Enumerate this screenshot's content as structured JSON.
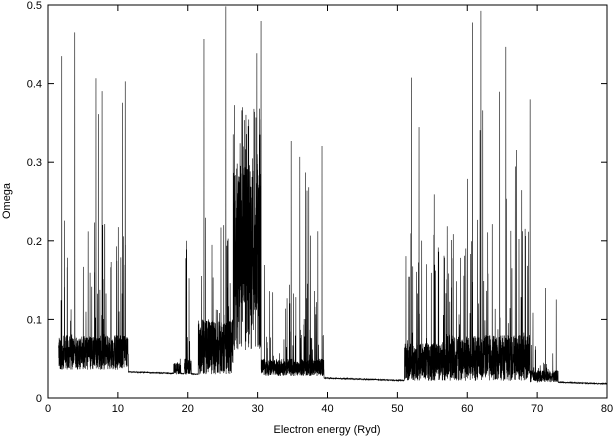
{
  "chart_data": {
    "type": "line",
    "title": "",
    "xlabel": "Electron energy (Ryd)",
    "ylabel": "Omega",
    "xlim": [
      0,
      80
    ],
    "ylim": [
      0,
      0.5
    ],
    "xticks": [
      "0",
      "10",
      "20",
      "30",
      "40",
      "50",
      "60",
      "70",
      "80"
    ],
    "yticks": [
      "0",
      "0.1",
      "0.2",
      "0.3",
      "0.4",
      "0.5"
    ],
    "grid": false,
    "legend": "none",
    "line_color": "#000000",
    "background": {
      "x": [
        1.5,
        12.0,
        12.0,
        52.0,
        52.0,
        73.0,
        73.0,
        80.0
      ],
      "y": [
        0.038,
        0.033,
        0.033,
        0.022,
        0.022,
        0.02,
        0.02,
        0.018
      ]
    },
    "resonance_regions": [
      {
        "x_range": [
          1.5,
          11.5
        ],
        "floor": 0.036,
        "typical_peak": 0.08,
        "max_peak": 0.5
      },
      {
        "x_range": [
          18.0,
          19.0
        ],
        "floor": 0.03,
        "typical_peak": 0.045,
        "max_peak": 0.06
      },
      {
        "x_range": [
          19.5,
          20.5
        ],
        "floor": 0.03,
        "typical_peak": 0.05,
        "max_peak": 0.2
      },
      {
        "x_range": [
          21.5,
          26.5
        ],
        "floor": 0.03,
        "typical_peak": 0.1,
        "max_peak": 0.5
      },
      {
        "x_range": [
          26.5,
          30.5
        ],
        "floor": 0.06,
        "typical_peak": 0.3,
        "max_peak": 0.5
      },
      {
        "x_range": [
          30.5,
          39.5
        ],
        "floor": 0.028,
        "typical_peak": 0.05,
        "max_peak": 0.327
      },
      {
        "x_range": [
          51.0,
          57.0
        ],
        "floor": 0.022,
        "typical_peak": 0.07,
        "max_peak": 0.5
      },
      {
        "x_range": [
          57.0,
          69.0
        ],
        "floor": 0.022,
        "typical_peak": 0.08,
        "max_peak": 0.5
      },
      {
        "x_range": [
          69.0,
          73.0
        ],
        "floor": 0.02,
        "typical_peak": 0.035,
        "max_peak": 0.14
      }
    ],
    "notable_peaks": [
      {
        "x": 34.8,
        "y": 0.327
      },
      {
        "x": 69.0,
        "y": 0.38
      },
      {
        "x": 71.2,
        "y": 0.14
      },
      {
        "x": 19.8,
        "y": 0.2
      }
    ]
  }
}
